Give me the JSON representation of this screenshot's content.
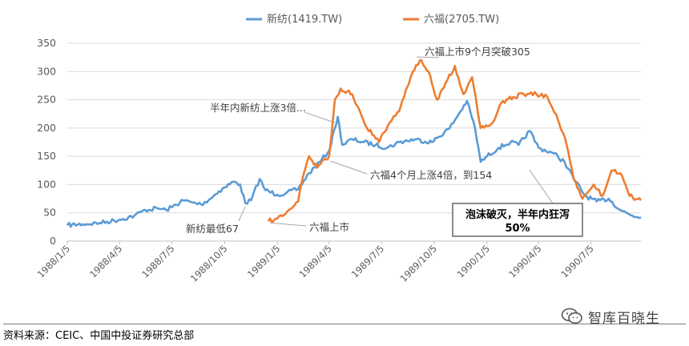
{
  "chart_data": {
    "type": "line",
    "ylim": [
      0,
      350
    ],
    "yticks": [
      0,
      50,
      100,
      150,
      200,
      250,
      300,
      350
    ],
    "x_range": [
      "1988/1/5",
      "1990/9/30"
    ],
    "x_ticks": [
      "1988/1/5",
      "1988/4/5",
      "1988/7/5",
      "1988/10/5",
      "1989/1/5",
      "1989/4/5",
      "1989/7/5",
      "1989/10/5",
      "1990/1/5",
      "1990/4/5",
      "1990/7/5"
    ],
    "grid": "horizontal",
    "legend_position": "top",
    "series": [
      {
        "name": "新纺(1419.TW)",
        "color": "#5B9BD5",
        "points": [
          [
            "1988/1/5",
            28
          ],
          [
            "1988/2/1",
            30
          ],
          [
            "1988/3/1",
            32
          ],
          [
            "1988/4/5",
            38
          ],
          [
            "1988/5/1",
            45
          ],
          [
            "1988/5/20",
            55
          ],
          [
            "1988/6/10",
            58
          ],
          [
            "1988/6/25",
            55
          ],
          [
            "1988/7/5",
            60
          ],
          [
            "1988/7/25",
            72
          ],
          [
            "1988/8/10",
            68
          ],
          [
            "1988/8/25",
            65
          ],
          [
            "1988/9/10",
            75
          ],
          [
            "1988/9/25",
            88
          ],
          [
            "1988/10/5",
            95
          ],
          [
            "1988/10/20",
            105
          ],
          [
            "1988/11/1",
            100
          ],
          [
            "1988/11/10",
            67
          ],
          [
            "1988/11/20",
            72
          ],
          [
            "1988/12/5",
            110
          ],
          [
            "1988/12/15",
            90
          ],
          [
            "1989/1/5",
            82
          ],
          [
            "1989/1/20",
            85
          ],
          [
            "1989/2/10",
            92
          ],
          [
            "1989/3/1",
            120
          ],
          [
            "1989/3/20",
            140
          ],
          [
            "1989/4/5",
            160
          ],
          [
            "1989/4/15",
            200
          ],
          [
            "1989/4/20",
            220
          ],
          [
            "1989/4/28",
            170
          ],
          [
            "1989/5/15",
            180
          ],
          [
            "1989/6/5",
            175
          ],
          [
            "1989/6/25",
            170
          ],
          [
            "1989/7/15",
            165
          ],
          [
            "1989/8/5",
            175
          ],
          [
            "1989/9/1",
            180
          ],
          [
            "1989/10/1",
            175
          ],
          [
            "1989/11/1",
            200
          ],
          [
            "1989/11/20",
            230
          ],
          [
            "1989/12/1",
            248
          ],
          [
            "1989/12/15",
            200
          ],
          [
            "1989/12/25",
            140
          ],
          [
            "1990/1/5",
            150
          ],
          [
            "1990/1/25",
            165
          ],
          [
            "1990/2/15",
            175
          ],
          [
            "1990/3/1",
            170
          ],
          [
            "1990/3/20",
            195
          ],
          [
            "1990/4/5",
            165
          ],
          [
            "1990/5/1",
            155
          ],
          [
            "1990/5/20",
            140
          ],
          [
            "1990/6/5",
            110
          ],
          [
            "1990/6/25",
            80
          ],
          [
            "1990/7/15",
            70
          ],
          [
            "1990/8/5",
            75
          ],
          [
            "1990/8/25",
            55
          ],
          [
            "1990/9/15",
            45
          ],
          [
            "1990/9/30",
            42
          ]
        ]
      },
      {
        "name": "六福(2705.TW)",
        "color": "#ED7D31",
        "points": [
          [
            "1988/12/20",
            35
          ],
          [
            "1989/1/5",
            40
          ],
          [
            "1989/1/25",
            55
          ],
          [
            "1989/2/10",
            70
          ],
          [
            "1989/2/20",
            120
          ],
          [
            "1989/3/1",
            150
          ],
          [
            "1989/3/15",
            130
          ],
          [
            "1989/4/5",
            150
          ],
          [
            "1989/4/15",
            250
          ],
          [
            "1989/4/25",
            270
          ],
          [
            "1989/5/15",
            260
          ],
          [
            "1989/6/10",
            200
          ],
          [
            "1989/7/1",
            175
          ],
          [
            "1989/7/20",
            210
          ],
          [
            "1989/8/5",
            230
          ],
          [
            "1989/8/25",
            290
          ],
          [
            "1989/9/10",
            320
          ],
          [
            "1989/9/25",
            300
          ],
          [
            "1989/10/10",
            250
          ],
          [
            "1989/10/25",
            280
          ],
          [
            "1989/11/10",
            310
          ],
          [
            "1989/11/25",
            260
          ],
          [
            "1989/12/10",
            290
          ],
          [
            "1989/12/25",
            200
          ],
          [
            "1990/1/15",
            210
          ],
          [
            "1990/1/30",
            245
          ],
          [
            "1990/2/20",
            255
          ],
          [
            "1990/3/10",
            260
          ],
          [
            "1990/4/1",
            260
          ],
          [
            "1990/4/20",
            255
          ],
          [
            "1990/5/5",
            225
          ],
          [
            "1990/5/20",
            185
          ],
          [
            "1990/6/5",
            110
          ],
          [
            "1990/6/20",
            75
          ],
          [
            "1990/7/10",
            100
          ],
          [
            "1990/7/25",
            80
          ],
          [
            "1990/8/10",
            125
          ],
          [
            "1990/8/25",
            120
          ],
          [
            "1990/9/10",
            80
          ],
          [
            "1990/9/30",
            72
          ]
        ]
      }
    ],
    "annotations": [
      {
        "text": "新纺最低67",
        "x": "1988/11/10",
        "y": 67
      },
      {
        "text": "六福上市",
        "x": "1988/12/20",
        "y": 35
      },
      {
        "text": "半年内新纺上涨3倍...",
        "x": "1989/4/15",
        "y": 215
      },
      {
        "text": "六福4个月上涨4倍，到154",
        "x": "1989/4/5",
        "y": 150
      },
      {
        "text": "六福上市9个月突破305",
        "x": "1989/9/10",
        "y": 320
      }
    ],
    "callout": {
      "line1": "泡沫破灭，半年内狂泻",
      "line2": "50%",
      "x": "1990/3/20",
      "y": 140
    }
  },
  "footer": {
    "source": "资料来源：CEIC、中国中投证券研究总部"
  },
  "watermark": {
    "text": "智库百晓生",
    "icon": "wechat-icon"
  }
}
